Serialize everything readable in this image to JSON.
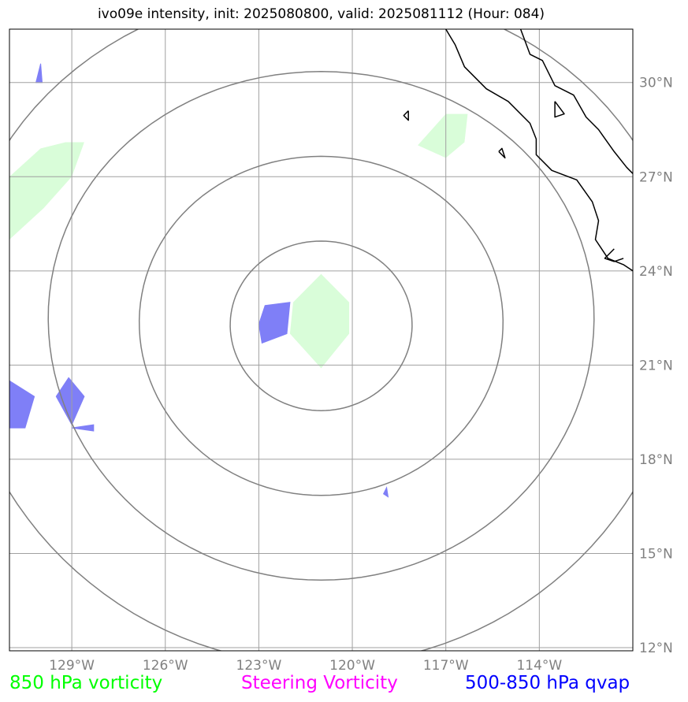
{
  "title": "ivo09e intensity, init: 2025080800, valid: 2025081112 (Hour: 084)",
  "map": {
    "lon_range": [
      -131.0,
      -111.0
    ],
    "lat_range": [
      11.9,
      31.7
    ],
    "center": {
      "lon": -121.0,
      "lat": 22.25
    },
    "range_ring_radii_deg": [
      2.7,
      5.4,
      8.1,
      10.8
    ],
    "colors": {
      "grid": "#a0a0a0",
      "ring": "#808080",
      "coast": "#000000",
      "vorticity_fill": "#d9fdd9",
      "qvap_fill": "#7f7ff7",
      "tick_text": "#808080"
    },
    "lon_ticks": [
      {
        "value": -129,
        "label": "129°W"
      },
      {
        "value": -126,
        "label": "126°W"
      },
      {
        "value": -123,
        "label": "123°W"
      },
      {
        "value": -120,
        "label": "120°W"
      },
      {
        "value": -117,
        "label": "117°W"
      },
      {
        "value": -114,
        "label": "114°W"
      }
    ],
    "lat_ticks": [
      {
        "value": 30,
        "label": "30°N"
      },
      {
        "value": 27,
        "label": "27°N"
      },
      {
        "value": 24,
        "label": "24°N"
      },
      {
        "value": 21,
        "label": "21°N"
      },
      {
        "value": 18,
        "label": "18°N"
      },
      {
        "value": 15,
        "label": "15°N"
      },
      {
        "value": 12,
        "label": "12°N"
      }
    ],
    "vorticity_patches": [
      [
        [
          -131.0,
          25.0
        ],
        [
          -129.9,
          26.0
        ],
        [
          -129.0,
          27.0
        ],
        [
          -128.6,
          28.1
        ],
        [
          -129.2,
          28.1
        ],
        [
          -130.0,
          27.9
        ],
        [
          -131.0,
          27.0
        ]
      ],
      [
        [
          -121.0,
          23.9
        ],
        [
          -120.1,
          23.0
        ],
        [
          -120.1,
          22.0
        ],
        [
          -121.0,
          20.9
        ],
        [
          -122.0,
          22.0
        ],
        [
          -121.9,
          23.0
        ]
      ],
      [
        [
          -116.3,
          29.0
        ],
        [
          -116.4,
          28.1
        ],
        [
          -117.0,
          27.6
        ],
        [
          -117.9,
          28.0
        ],
        [
          -117.0,
          29.0
        ]
      ]
    ],
    "qvap_patches": [
      [
        [
          -122.8,
          22.9
        ],
        [
          -122.0,
          23.0
        ],
        [
          -122.1,
          22.0
        ],
        [
          -122.9,
          21.7
        ],
        [
          -123.0,
          22.3
        ]
      ],
      [
        [
          -131.0,
          20.5
        ],
        [
          -130.2,
          20.0
        ],
        [
          -130.5,
          19.0
        ],
        [
          -131.0,
          19.0
        ]
      ],
      [
        [
          -129.1,
          20.6
        ],
        [
          -128.6,
          20.0
        ],
        [
          -129.0,
          19.1
        ],
        [
          -129.5,
          20.0
        ]
      ],
      [
        [
          -128.3,
          19.1
        ],
        [
          -128.3,
          18.9
        ],
        [
          -129.0,
          19.0
        ]
      ],
      [
        [
          -130.0,
          30.6
        ],
        [
          -129.95,
          30.0
        ],
        [
          -130.15,
          30.0
        ]
      ],
      [
        [
          -118.9,
          17.1
        ],
        [
          -118.85,
          16.8
        ],
        [
          -119.0,
          16.9
        ]
      ]
    ],
    "coastlines": [
      [
        [
          -114.6,
          31.7
        ],
        [
          -114.3,
          30.9
        ],
        [
          -113.9,
          30.7
        ],
        [
          -113.5,
          29.9
        ],
        [
          -112.9,
          29.6
        ],
        [
          -112.5,
          28.9
        ],
        [
          -112.1,
          28.5
        ],
        [
          -111.6,
          27.8
        ],
        [
          -111.2,
          27.3
        ],
        [
          -111.0,
          27.1
        ]
      ],
      [
        [
          -117.0,
          31.7
        ],
        [
          -116.7,
          31.2
        ],
        [
          -116.4,
          30.5
        ],
        [
          -115.7,
          29.8
        ],
        [
          -115.0,
          29.4
        ],
        [
          -114.3,
          28.7
        ],
        [
          -114.1,
          28.2
        ],
        [
          -114.1,
          27.7
        ],
        [
          -113.6,
          27.2
        ],
        [
          -112.8,
          26.9
        ],
        [
          -112.3,
          26.2
        ],
        [
          -112.1,
          25.6
        ],
        [
          -112.2,
          25.0
        ],
        [
          -111.8,
          24.4
        ],
        [
          -111.3,
          24.2
        ],
        [
          -111.0,
          24.0
        ]
      ],
      [
        [
          -111.6,
          24.7
        ],
        [
          -111.9,
          24.4
        ],
        [
          -111.6,
          24.3
        ],
        [
          -111.3,
          24.4
        ]
      ],
      [
        [
          -118.2,
          29.1
        ],
        [
          -118.2,
          28.8
        ],
        [
          -118.35,
          28.95
        ],
        [
          -118.2,
          29.1
        ]
      ],
      [
        [
          -115.3,
          27.8
        ],
        [
          -115.1,
          27.6
        ],
        [
          -115.2,
          27.9
        ],
        [
          -115.3,
          27.8
        ]
      ],
      [
        [
          -113.5,
          29.4
        ],
        [
          -113.2,
          29.0
        ],
        [
          -113.5,
          28.9
        ],
        [
          -113.5,
          29.4
        ]
      ]
    ]
  },
  "legend": {
    "vorticity_850": {
      "label": "850 hPa vorticity",
      "color": "#00ff00"
    },
    "steering": {
      "label": "Steering Vorticity",
      "color": "#ff00ff"
    },
    "qvap": {
      "label": "500-850 hPa qvap",
      "color": "#0000ff"
    }
  }
}
